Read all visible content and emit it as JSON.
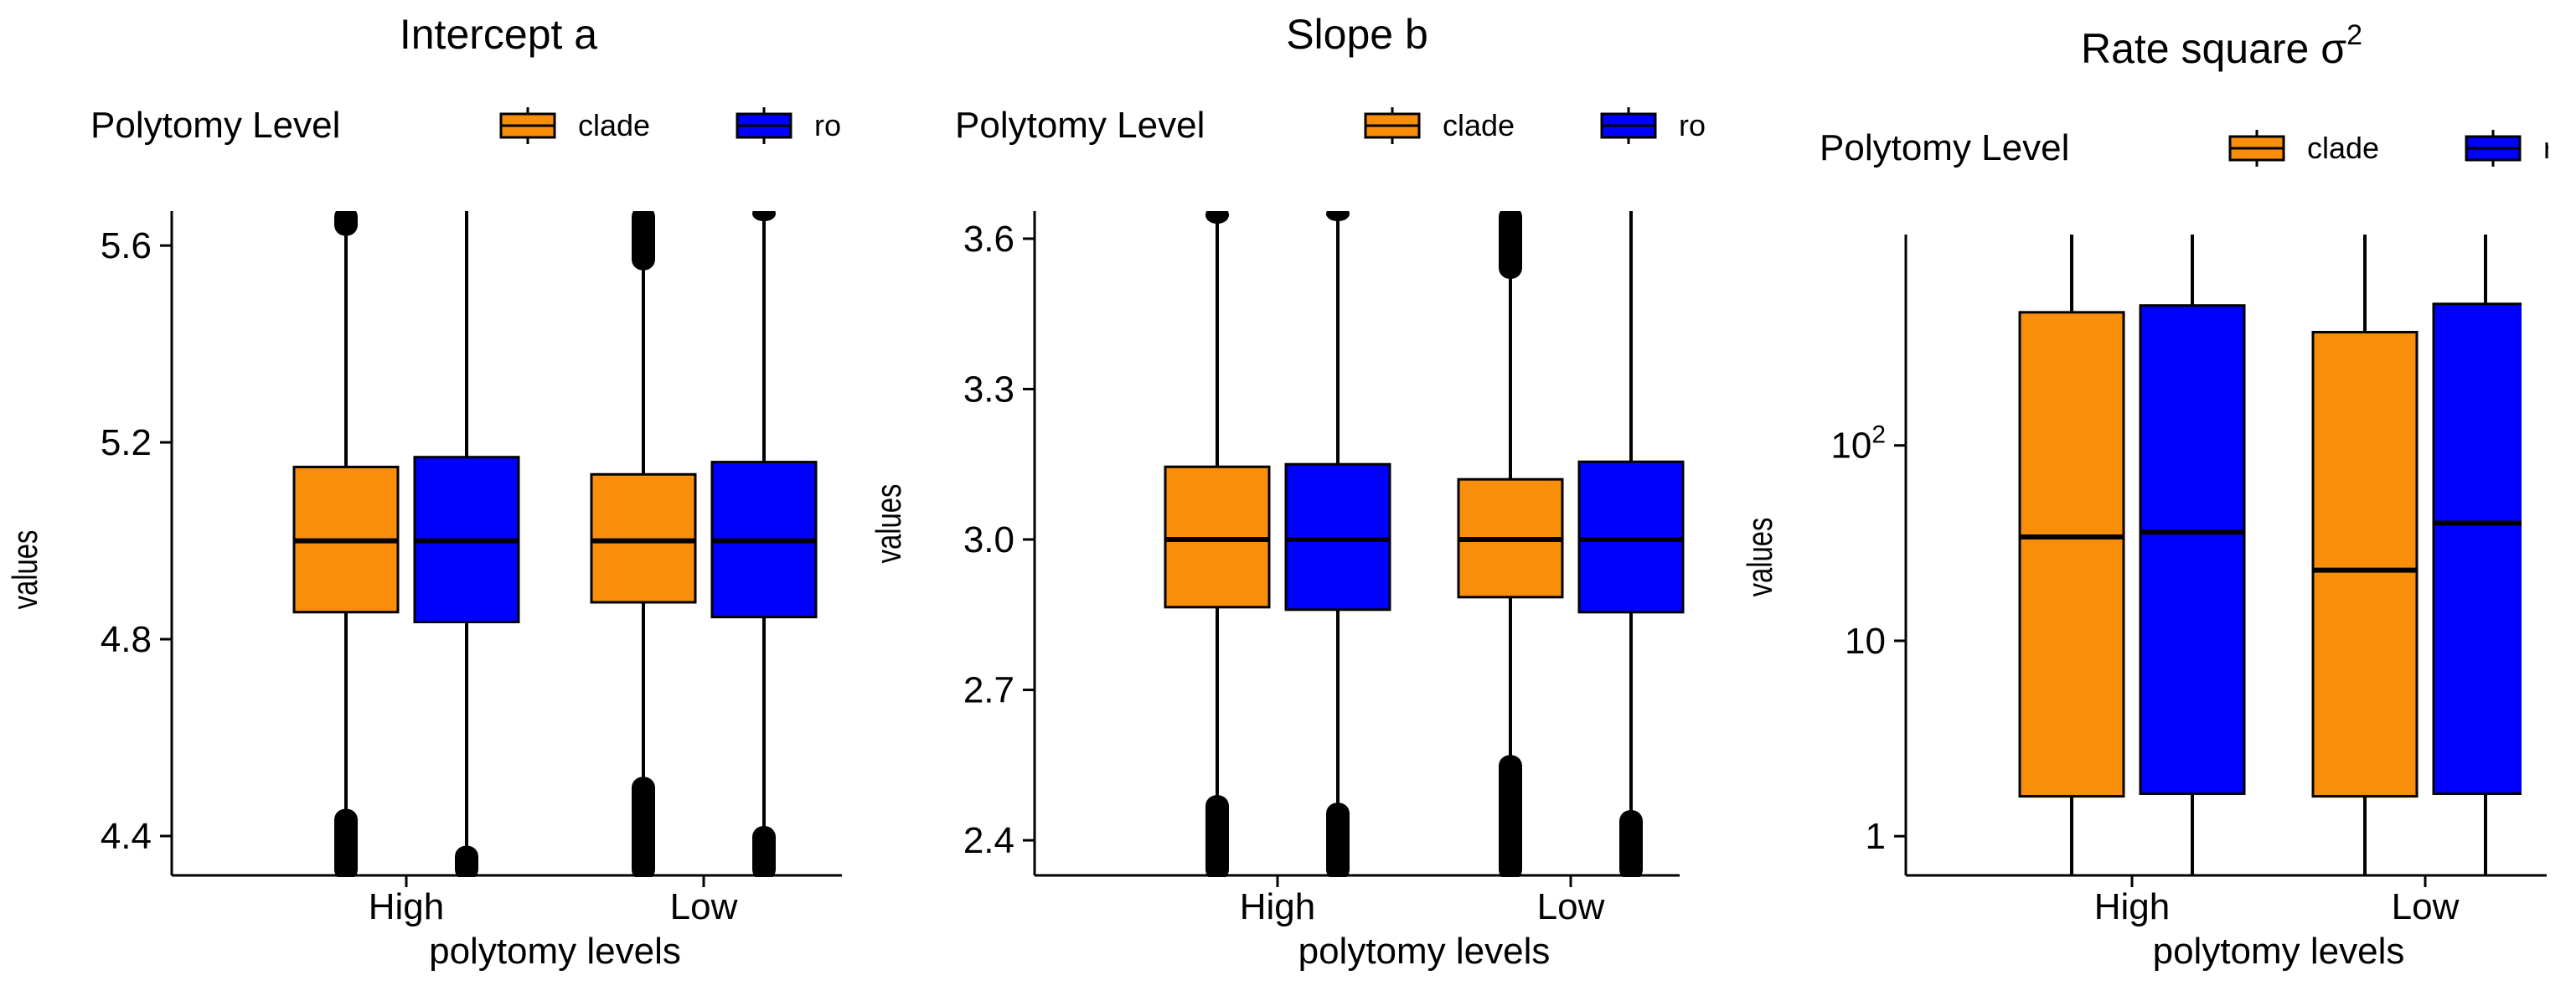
{
  "chart_data": [
    {
      "type": "box",
      "title": "Intercept a",
      "legend_title": "Polytomy Level",
      "legend_entries": [
        {
          "label": "clade",
          "color": "#F98E0B"
        },
        {
          "label": "ro",
          "color": "#0000FF"
        }
      ],
      "xlabel": "polytomy levels",
      "ylabel": "values",
      "categories": [
        "High",
        "Low"
      ],
      "scale": "linear",
      "ylim": [
        4.32,
        5.67
      ],
      "yticks": [
        4.4,
        4.8,
        5.2,
        5.6
      ],
      "ytick_labels": [
        "4.4",
        "4.8",
        "5.2",
        "5.6"
      ],
      "series": [
        {
          "name": "clade",
          "color": "#F98E0B",
          "boxes": [
            {
              "q1": 4.855,
              "median": 5.0,
              "q3": 5.15,
              "whisker_low": 4.445,
              "whisker_high": 5.63,
              "outlier_low": [
                4.32,
                4.445
              ],
              "outlier_high": [
                5.63,
                5.67
              ]
            },
            {
              "q1": 4.875,
              "median": 5.0,
              "q3": 5.135,
              "whisker_low": 4.51,
              "whisker_high": 5.56,
              "outlier_low": [
                4.32,
                4.51
              ],
              "outlier_high": [
                5.56,
                5.67
              ]
            }
          ]
        },
        {
          "name": "ro",
          "color": "#0000FF",
          "boxes": [
            {
              "q1": 4.835,
              "median": 5.0,
              "q3": 5.17,
              "whisker_low": 4.37,
              "whisker_high": 5.67,
              "outlier_low": [
                4.32,
                4.37
              ],
              "outlier_high": []
            },
            {
              "q1": 4.845,
              "median": 5.0,
              "q3": 5.16,
              "whisker_low": 4.41,
              "whisker_high": 5.67,
              "outlier_low": [
                4.32,
                4.41
              ],
              "outlier_high": [
                5.66,
                5.67
              ]
            }
          ]
        }
      ]
    },
    {
      "type": "box",
      "title": "Slope b",
      "legend_title": "Polytomy Level",
      "legend_entries": [
        {
          "label": "clade",
          "color": "#F98E0B"
        },
        {
          "label": "ro",
          "color": "#0000FF"
        }
      ],
      "xlabel": "polytomy levels",
      "ylabel": "values",
      "categories": [
        "High",
        "Low"
      ],
      "scale": "linear",
      "ylim": [
        2.33,
        3.655
      ],
      "yticks": [
        2.4,
        2.7,
        3.0,
        3.3,
        3.6
      ],
      "ytick_labels": [
        "2.4",
        "2.7",
        "3.0",
        "3.3",
        "3.6"
      ],
      "series": [
        {
          "name": "clade",
          "color": "#F98E0B",
          "boxes": [
            {
              "q1": 2.865,
              "median": 3.0,
              "q3": 3.145,
              "whisker_low": 2.48,
              "whisker_high": 3.64,
              "outlier_low": [
                2.33,
                2.48
              ],
              "outlier_high": [
                3.64,
                3.655
              ]
            },
            {
              "q1": 2.885,
              "median": 3.0,
              "q3": 3.12,
              "whisker_low": 2.56,
              "whisker_high": 3.53,
              "outlier_low": [
                2.33,
                2.56
              ],
              "outlier_high": [
                3.53,
                3.655
              ]
            }
          ]
        },
        {
          "name": "ro",
          "color": "#0000FF",
          "boxes": [
            {
              "q1": 2.86,
              "median": 3.0,
              "q3": 3.15,
              "whisker_low": 2.465,
              "whisker_high": 3.655,
              "outlier_low": [
                2.33,
                2.465
              ],
              "outlier_high": [
                3.645,
                3.655
              ]
            },
            {
              "q1": 2.855,
              "median": 3.0,
              "q3": 3.155,
              "whisker_low": 2.45,
              "whisker_high": 3.655,
              "outlier_low": [
                2.33,
                2.45
              ],
              "outlier_high": []
            }
          ]
        }
      ]
    },
    {
      "type": "box",
      "title": "Rate square σ",
      "title_superscript": "2",
      "legend_title": "Polytomy Level",
      "legend_entries": [
        {
          "label": "clade",
          "color": "#F98E0B"
        },
        {
          "label": "ro",
          "color": "#0000FF"
        }
      ],
      "xlabel": "polytomy levels",
      "ylabel": "values",
      "categories": [
        "High",
        "Low"
      ],
      "scale": "log10",
      "ylim": [
        0.63,
        1200
      ],
      "yticks": [
        1,
        10,
        100
      ],
      "ytick_labels": [
        {
          "base": "1",
          "exp": ""
        },
        {
          "base": "10",
          "exp": ""
        },
        {
          "base": "10",
          "exp": "2"
        }
      ],
      "series": [
        {
          "name": "clade",
          "color": "#F98E0B",
          "boxes": [
            {
              "q1": 1.6,
              "median": 34,
              "q3": 480,
              "whisker_low": 0.63,
              "whisker_high": 1200,
              "outlier_low": [],
              "outlier_high": []
            },
            {
              "q1": 1.6,
              "median": 23,
              "q3": 380,
              "whisker_low": 0.63,
              "whisker_high": 1200,
              "outlier_low": [],
              "outlier_high": []
            }
          ]
        },
        {
          "name": "ro",
          "color": "#0000FF",
          "boxes": [
            {
              "q1": 1.65,
              "median": 36,
              "q3": 520,
              "whisker_low": 0.63,
              "whisker_high": 1200,
              "outlier_low": [],
              "outlier_high": []
            },
            {
              "q1": 1.65,
              "median": 40,
              "q3": 530,
              "whisker_low": 0.63,
              "whisker_high": 1200,
              "outlier_low": [],
              "outlier_high": []
            }
          ]
        }
      ]
    }
  ]
}
